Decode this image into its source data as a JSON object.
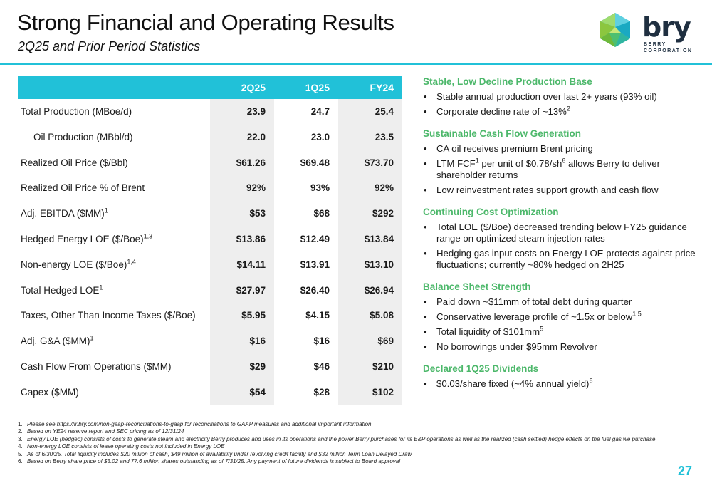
{
  "header": {
    "title": "Strong Financial and Operating Results",
    "subtitle": "2Q25 and Prior Period Statistics"
  },
  "logo": {
    "word": "bry",
    "line1": "BERRY",
    "line2": "CORPORATION",
    "icon": "green-teal-polyhedron-icon",
    "colors": {
      "teal": "#21c1d8",
      "green": "#8cc63f",
      "dark": "#1f2f40"
    }
  },
  "colors": {
    "accent": "#21c1d8",
    "section_title": "#4db86b",
    "band": "#eeeeee"
  },
  "table": {
    "columns": [
      "2Q25",
      "1Q25",
      "FY24"
    ],
    "rows": [
      {
        "label": "Total Production (MBoe/d)",
        "sup": "",
        "indent": false,
        "values": [
          "23.9",
          "24.7",
          "25.4"
        ]
      },
      {
        "label": "Oil Production (MBbl/d)",
        "sup": "",
        "indent": true,
        "values": [
          "22.0",
          "23.0",
          "23.5"
        ]
      },
      {
        "label": "Realized Oil Price ($/Bbl)",
        "sup": "",
        "indent": false,
        "values": [
          "$61.26",
          "$69.48",
          "$73.70"
        ]
      },
      {
        "label": "Realized Oil Price % of Brent",
        "sup": "",
        "indent": false,
        "values": [
          "92%",
          "93%",
          "92%"
        ]
      },
      {
        "label": "Adj. EBITDA ($MM)",
        "sup": "1",
        "indent": false,
        "values": [
          "$53",
          "$68",
          "$292"
        ]
      },
      {
        "label": "Hedged Energy LOE ($/Boe)",
        "sup": "1,3",
        "indent": false,
        "values": [
          "$13.86",
          "$12.49",
          "$13.84"
        ]
      },
      {
        "label": "Non-energy LOE ($/Boe)",
        "sup": "1,4",
        "indent": false,
        "values": [
          "$14.11",
          "$13.91",
          "$13.10"
        ]
      },
      {
        "label": "Total Hedged LOE",
        "sup": "1",
        "indent": false,
        "values": [
          "$27.97",
          "$26.40",
          "$26.94"
        ]
      },
      {
        "label": "Taxes, Other Than Income Taxes ($/Boe)",
        "sup": "",
        "indent": false,
        "values": [
          "$5.95",
          "$4.15",
          "$5.08"
        ]
      },
      {
        "label": "Adj. G&A ($MM)",
        "sup": "1",
        "indent": false,
        "values": [
          "$16",
          "$16",
          "$69"
        ]
      },
      {
        "label": "Cash Flow From Operations ($MM)",
        "sup": "",
        "indent": false,
        "values": [
          "$29",
          "$46",
          "$210"
        ]
      },
      {
        "label": "Capex ($MM)",
        "sup": "",
        "indent": false,
        "values": [
          "$54",
          "$28",
          "$102"
        ]
      }
    ]
  },
  "sections": [
    {
      "title": "Stable, Low Decline Production Base",
      "bullets": [
        {
          "parts": [
            {
              "t": "Stable annual production over last 2+ years (93% oil)"
            }
          ]
        },
        {
          "parts": [
            {
              "t": "Corporate decline rate of ~13%"
            },
            {
              "s": "2"
            }
          ]
        }
      ]
    },
    {
      "title": "Sustainable Cash Flow Generation",
      "bullets": [
        {
          "parts": [
            {
              "t": "CA oil receives premium Brent pricing"
            }
          ]
        },
        {
          "parts": [
            {
              "t": "LTM FCF"
            },
            {
              "s": "1"
            },
            {
              "t": " per unit of $0.78/sh"
            },
            {
              "s": "6"
            },
            {
              "t": " allows Berry to deliver shareholder returns"
            }
          ]
        },
        {
          "parts": [
            {
              "t": "Low reinvestment rates support growth and cash flow"
            }
          ]
        }
      ]
    },
    {
      "title": "Continuing Cost Optimization",
      "bullets": [
        {
          "parts": [
            {
              "t": "Total LOE ($/Boe) decreased trending below FY25 guidance range on optimized steam injection rates"
            }
          ]
        },
        {
          "parts": [
            {
              "t": "Hedging gas input costs on Energy LOE protects against price fluctuations; currently ~80% hedged on 2H25"
            }
          ]
        }
      ]
    },
    {
      "title": "Balance Sheet Strength",
      "bullets": [
        {
          "parts": [
            {
              "t": "Paid down ~$11mm of total debt during quarter"
            }
          ]
        },
        {
          "parts": [
            {
              "t": "Conservative leverage profile of ~1.5x or below"
            },
            {
              "s": "1,5"
            }
          ]
        },
        {
          "parts": [
            {
              "t": "Total liquidity of $101mm"
            },
            {
              "s": "5"
            }
          ]
        },
        {
          "parts": [
            {
              "t": "No borrowings under $95mm Revolver"
            }
          ]
        }
      ]
    },
    {
      "title": "Declared 1Q25 Dividends",
      "bullets": [
        {
          "parts": [
            {
              "t": "$0.03/share fixed (~4% annual yield)"
            },
            {
              "s": "6"
            }
          ]
        }
      ]
    }
  ],
  "bullet_char": "•",
  "footnotes": [
    {
      "num": "1.",
      "text": "Please see https://ir.bry.com/non-gaap-reconciliations-to-gaap for reconciliations to GAAP measures and additional important information"
    },
    {
      "num": "2.",
      "text": "Based on YE24 reserve report and SEC pricing as of 12/31/24"
    },
    {
      "num": "3.",
      "text": "Energy LOE (hedged) consists of costs to generate steam and electricity Berry produces and uses in its operations and the power Berry purchases for its E&P operations as well as the realized (cash settled) hedge effects on the fuel gas we purchase"
    },
    {
      "num": "4.",
      "text": "Non-energy LOE consists of lease operating costs not included in Energy LOE"
    },
    {
      "num": "5.",
      "text": "As of 6/30/25. Total liquidity includes $20 million of cash, $49 million of availability under revolving credit facility and $32 million Term Loan Delayed Draw"
    },
    {
      "num": "6.",
      "text": "Based on Berry share price of $3.02 and 77.6 million shares outstanding as of 7/31/25. Any payment of future dividends is subject to Board approval"
    }
  ],
  "page_number": "27"
}
